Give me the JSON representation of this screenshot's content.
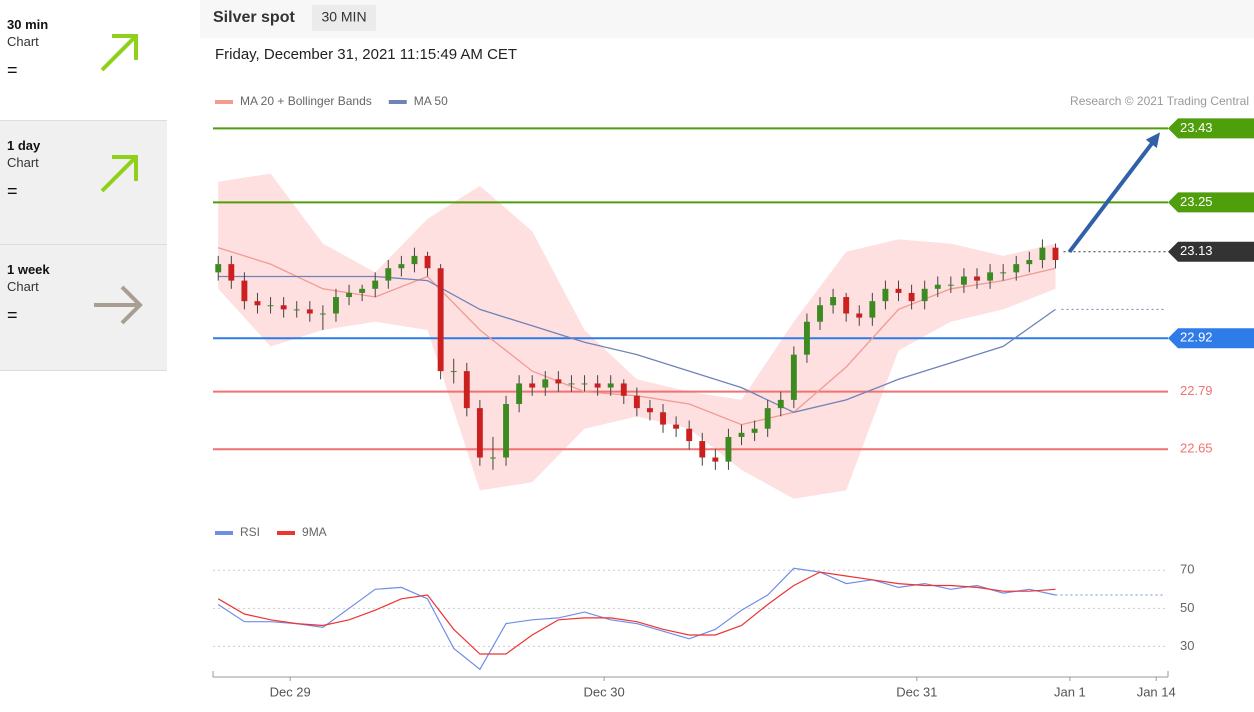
{
  "header": {
    "title": "Silver spot",
    "interval": "30 MIN",
    "timestamp": "Friday, December 31, 2021 11:15:49 AM CET",
    "credit": "Research © 2021 Trading Central"
  },
  "sidebar": [
    {
      "period": "30 min",
      "label": "Chart",
      "signal": "="
    },
    {
      "period": "1 day",
      "label": "Chart",
      "signal": "="
    },
    {
      "period": "1 week",
      "label": "Chart",
      "signal": "="
    }
  ],
  "chart_data": [
    {
      "type": "candlestick",
      "up_color": "#3d8a22",
      "down_color": "#cc2020",
      "ylim": [
        22.5,
        23.46
      ],
      "xlim": [
        -0.4,
        72.6
      ],
      "candles": [
        [
          23.08,
          23.12,
          23.06,
          23.1
        ],
        [
          23.1,
          23.12,
          23.04,
          23.06
        ],
        [
          23.06,
          23.08,
          22.99,
          23.01
        ],
        [
          23.01,
          23.03,
          22.98,
          23.0
        ],
        [
          23.0,
          23.02,
          22.98,
          23.0
        ],
        [
          23.0,
          23.02,
          22.97,
          22.99
        ],
        [
          22.99,
          23.01,
          22.97,
          22.99
        ],
        [
          22.99,
          23.01,
          22.96,
          22.98
        ],
        [
          22.98,
          23.0,
          22.94,
          22.98
        ],
        [
          22.98,
          23.04,
          22.96,
          23.02
        ],
        [
          23.02,
          23.05,
          23.0,
          23.03
        ],
        [
          23.03,
          23.05,
          23.01,
          23.04
        ],
        [
          23.04,
          23.08,
          23.02,
          23.06
        ],
        [
          23.06,
          23.11,
          23.04,
          23.09
        ],
        [
          23.09,
          23.12,
          23.07,
          23.1
        ],
        [
          23.1,
          23.14,
          23.08,
          23.12
        ],
        [
          23.12,
          23.13,
          23.07,
          23.09
        ],
        [
          23.09,
          23.1,
          22.82,
          22.84
        ],
        [
          22.84,
          22.87,
          22.81,
          22.84
        ],
        [
          22.84,
          22.86,
          22.73,
          22.75
        ],
        [
          22.75,
          22.77,
          22.61,
          22.63
        ],
        [
          22.63,
          22.68,
          22.6,
          22.63
        ],
        [
          22.63,
          22.78,
          22.61,
          22.76
        ],
        [
          22.76,
          22.83,
          22.74,
          22.81
        ],
        [
          22.81,
          22.83,
          22.78,
          22.8
        ],
        [
          22.8,
          22.84,
          22.78,
          22.82
        ],
        [
          22.82,
          22.84,
          22.79,
          22.81
        ],
        [
          22.81,
          22.83,
          22.79,
          22.81
        ],
        [
          22.81,
          22.83,
          22.79,
          22.81
        ],
        [
          22.81,
          22.83,
          22.78,
          22.8
        ],
        [
          22.8,
          22.83,
          22.78,
          22.81
        ],
        [
          22.81,
          22.82,
          22.76,
          22.78
        ],
        [
          22.78,
          22.8,
          22.73,
          22.75
        ],
        [
          22.75,
          22.77,
          22.72,
          22.74
        ],
        [
          22.74,
          22.76,
          22.69,
          22.71
        ],
        [
          22.71,
          22.73,
          22.68,
          22.7
        ],
        [
          22.7,
          22.72,
          22.65,
          22.67
        ],
        [
          22.67,
          22.69,
          22.61,
          22.63
        ],
        [
          22.63,
          22.65,
          22.6,
          22.62
        ],
        [
          22.62,
          22.7,
          22.6,
          22.68
        ],
        [
          22.68,
          22.71,
          22.66,
          22.69
        ],
        [
          22.69,
          22.72,
          22.67,
          22.7
        ],
        [
          22.7,
          22.77,
          22.68,
          22.75
        ],
        [
          22.75,
          22.79,
          22.73,
          22.77
        ],
        [
          22.77,
          22.9,
          22.75,
          22.88
        ],
        [
          22.88,
          22.98,
          22.86,
          22.96
        ],
        [
          22.96,
          23.02,
          22.94,
          23.0
        ],
        [
          23.0,
          23.04,
          22.98,
          23.02
        ],
        [
          23.02,
          23.03,
          22.96,
          22.98
        ],
        [
          22.98,
          23.0,
          22.95,
          22.97
        ],
        [
          22.97,
          23.03,
          22.95,
          23.01
        ],
        [
          23.01,
          23.06,
          22.99,
          23.04
        ],
        [
          23.04,
          23.06,
          23.01,
          23.03
        ],
        [
          23.03,
          23.05,
          22.99,
          23.01
        ],
        [
          23.01,
          23.06,
          22.99,
          23.04
        ],
        [
          23.04,
          23.07,
          23.02,
          23.05
        ],
        [
          23.05,
          23.07,
          23.03,
          23.05
        ],
        [
          23.05,
          23.09,
          23.03,
          23.07
        ],
        [
          23.07,
          23.09,
          23.04,
          23.06
        ],
        [
          23.06,
          23.1,
          23.04,
          23.08
        ],
        [
          23.08,
          23.1,
          23.06,
          23.08
        ],
        [
          23.08,
          23.12,
          23.06,
          23.1
        ],
        [
          23.1,
          23.13,
          23.08,
          23.11
        ],
        [
          23.11,
          23.16,
          23.09,
          23.14
        ],
        [
          23.14,
          23.15,
          23.09,
          23.11
        ]
      ],
      "x": [
        0,
        4,
        8,
        12,
        16,
        20,
        24,
        28,
        32,
        36,
        40,
        44,
        48,
        52,
        56,
        60,
        64
      ],
      "series": [
        {
          "name": "MA 20 + Bollinger Bands",
          "color": "#f29a94",
          "band_color": "#fde0df",
          "values": [
            23.14,
            23.1,
            23.04,
            23.02,
            23.07,
            22.94,
            22.84,
            22.79,
            22.78,
            22.76,
            22.71,
            22.74,
            22.85,
            22.99,
            23.04,
            23.06,
            23.09
          ],
          "upper": [
            23.3,
            23.32,
            23.15,
            23.08,
            23.21,
            23.29,
            23.18,
            22.94,
            22.82,
            22.79,
            22.77,
            22.96,
            23.13,
            23.16,
            23.15,
            23.12,
            23.15
          ],
          "lower": [
            23.04,
            22.9,
            22.94,
            22.96,
            22.94,
            22.55,
            22.57,
            22.7,
            22.73,
            22.7,
            22.6,
            22.53,
            22.55,
            22.89,
            22.96,
            22.99,
            23.04
          ]
        },
        {
          "name": "MA 50",
          "color": "#7083b8",
          "values": [
            23.07,
            23.07,
            23.07,
            23.07,
            23.06,
            22.99,
            22.95,
            22.91,
            22.88,
            22.84,
            22.8,
            22.74,
            22.77,
            22.82,
            22.86,
            22.9,
            22.99
          ]
        }
      ],
      "levels": [
        {
          "value": 23.43,
          "color": "#4f9e0c",
          "boxed": true,
          "dotted": false
        },
        {
          "value": 23.25,
          "color": "#4f9e0c",
          "boxed": true,
          "dotted": false
        },
        {
          "value": 23.13,
          "color": "#333333",
          "boxed": true,
          "dotted": true
        },
        {
          "value": 22.92,
          "color": "#2f7be8",
          "boxed": true,
          "dotted": false
        },
        {
          "value": 22.79,
          "color": "#f07272",
          "boxed": false,
          "dotted": false
        },
        {
          "value": 22.65,
          "color": "#f07272",
          "boxed": false,
          "dotted": false
        }
      ]
    },
    {
      "type": "line",
      "ylim": [
        15,
        78
      ],
      "yticks": [
        30,
        50,
        70
      ],
      "xlim": [
        -0.4,
        72.6
      ],
      "xticks": [
        {
          "value": 5.5,
          "label": "Dec 29"
        },
        {
          "value": 29.5,
          "label": "Dec 30"
        },
        {
          "value": 53.4,
          "label": "Dec 31"
        },
        {
          "value": 65.1,
          "label": "Jan 1"
        },
        {
          "value": 71.7,
          "label": "Jan 14"
        }
      ],
      "x": [
        0,
        2,
        4,
        6,
        8,
        10,
        12,
        14,
        16,
        18,
        20,
        22,
        24,
        26,
        28,
        30,
        32,
        34,
        36,
        38,
        40,
        42,
        44,
        46,
        48,
        50,
        52,
        54,
        56,
        58,
        60,
        62,
        64
      ],
      "series": [
        {
          "name": "RSI",
          "color": "#6f8ee8",
          "values": [
            52,
            43,
            43,
            42,
            40,
            50,
            60,
            61,
            55,
            29,
            18,
            42,
            44,
            45,
            48,
            44,
            42,
            38,
            34,
            39,
            49,
            57,
            71,
            69,
            63,
            65,
            61,
            63,
            60,
            62,
            58,
            60,
            57
          ]
        },
        {
          "name": "9MA",
          "color": "#ee3333",
          "values": [
            55,
            47,
            44,
            42,
            41,
            44,
            49,
            55,
            57,
            39,
            26,
            26,
            36,
            44,
            45,
            45,
            43,
            39,
            36,
            36,
            41,
            52,
            62,
            69,
            67,
            65,
            63,
            62,
            62,
            61,
            59,
            59,
            60
          ]
        }
      ]
    }
  ]
}
